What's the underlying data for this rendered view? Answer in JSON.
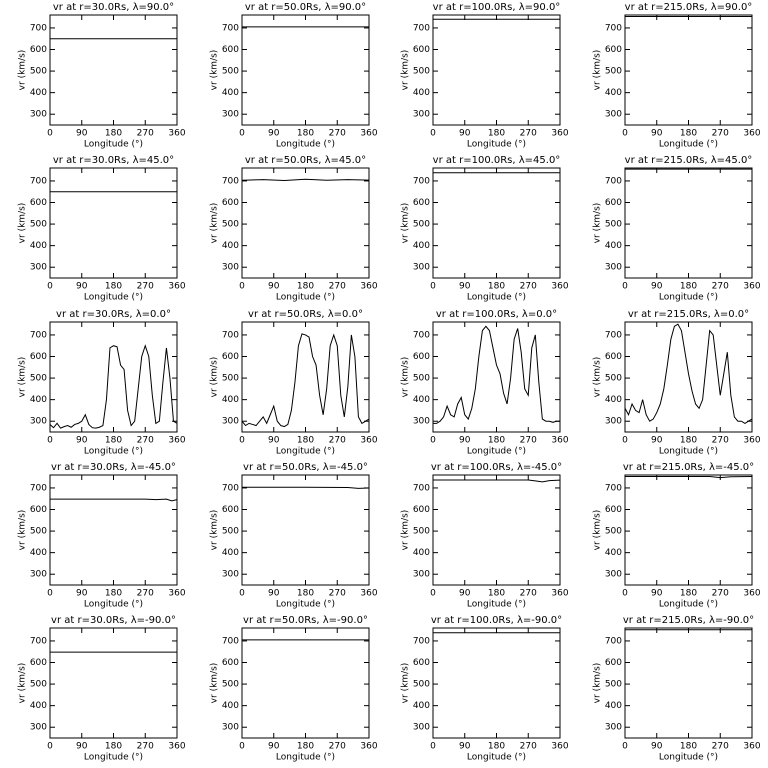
{
  "chart_data": [
    {
      "type": "line",
      "title": "vr at r=30.0Rs, λ=90.0°",
      "x_label": "Longitude (°)",
      "y_label": "vr (km/s)",
      "x": [
        0,
        360
      ],
      "values": [
        650,
        650
      ],
      "color": "#000000",
      "xlim": [
        0,
        360
      ],
      "xticks": [
        0,
        90,
        180,
        270,
        360
      ],
      "ylim": [
        250,
        760
      ],
      "yticks": [
        300,
        400,
        500,
        600,
        700
      ]
    },
    {
      "type": "line",
      "title": "vr at r=50.0Rs, λ=90.0°",
      "x_label": "Longitude (°)",
      "y_label": "vr (km/s)",
      "x": [
        0,
        360
      ],
      "values": [
        705,
        705
      ],
      "color": "#000000",
      "xlim": [
        0,
        360
      ],
      "xticks": [
        0,
        90,
        180,
        270,
        360
      ],
      "ylim": [
        250,
        760
      ],
      "yticks": [
        300,
        400,
        500,
        600,
        700
      ]
    },
    {
      "type": "line",
      "title": "vr at r=100.0Rs, λ=90.0°",
      "x_label": "Longitude (°)",
      "y_label": "vr (km/s)",
      "x": [
        0,
        360
      ],
      "values": [
        740,
        740
      ],
      "color": "#000000",
      "xlim": [
        0,
        360
      ],
      "xticks": [
        0,
        90,
        180,
        270,
        360
      ],
      "ylim": [
        250,
        760
      ],
      "yticks": [
        300,
        400,
        500,
        600,
        700
      ]
    },
    {
      "type": "line",
      "title": "vr at r=215.0Rs, λ=90.0°",
      "x_label": "Longitude (°)",
      "y_label": "vr (km/s)",
      "x": [
        0,
        360
      ],
      "values": [
        753,
        753
      ],
      "color": "#000000",
      "xlim": [
        0,
        360
      ],
      "xticks": [
        0,
        90,
        180,
        270,
        360
      ],
      "ylim": [
        250,
        760
      ],
      "yticks": [
        300,
        400,
        500,
        600,
        700
      ]
    },
    {
      "type": "line",
      "title": "vr at r=30.0Rs, λ=45.0°",
      "x_label": "Longitude (°)",
      "y_label": "vr (km/s)",
      "x": [
        0,
        360
      ],
      "values": [
        650,
        650
      ],
      "color": "#000000",
      "xlim": [
        0,
        360
      ],
      "xticks": [
        0,
        90,
        180,
        270,
        360
      ],
      "ylim": [
        250,
        760
      ],
      "yticks": [
        300,
        400,
        500,
        600,
        700
      ]
    },
    {
      "type": "line",
      "title": "vr at r=50.0Rs, λ=45.0°",
      "x_label": "Longitude (°)",
      "y_label": "vr (km/s)",
      "x": [
        0,
        60,
        120,
        180,
        240,
        300,
        360
      ],
      "values": [
        703,
        706,
        702,
        708,
        703,
        706,
        704
      ],
      "color": "#000000",
      "xlim": [
        0,
        360
      ],
      "xticks": [
        0,
        90,
        180,
        270,
        360
      ],
      "ylim": [
        250,
        760
      ],
      "yticks": [
        300,
        400,
        500,
        600,
        700
      ]
    },
    {
      "type": "line",
      "title": "vr at r=100.0Rs, λ=45.0°",
      "x_label": "Longitude (°)",
      "y_label": "vr (km/s)",
      "x": [
        0,
        360
      ],
      "values": [
        738,
        738
      ],
      "color": "#000000",
      "xlim": [
        0,
        360
      ],
      "xticks": [
        0,
        90,
        180,
        270,
        360
      ],
      "ylim": [
        250,
        760
      ],
      "yticks": [
        300,
        400,
        500,
        600,
        700
      ]
    },
    {
      "type": "line",
      "title": "vr at r=215.0Rs, λ=45.0°",
      "x_label": "Longitude (°)",
      "y_label": "vr (km/s)",
      "x": [
        0,
        360
      ],
      "values": [
        755,
        755
      ],
      "color": "#000000",
      "xlim": [
        0,
        360
      ],
      "xticks": [
        0,
        90,
        180,
        270,
        360
      ],
      "ylim": [
        250,
        760
      ],
      "yticks": [
        300,
        400,
        500,
        600,
        700
      ]
    },
    {
      "type": "line",
      "title": "vr at r=30.0Rs, λ=0.0°",
      "x_label": "Longitude (°)",
      "y_label": "vr (km/s)",
      "x": [
        0,
        10,
        20,
        30,
        40,
        50,
        60,
        70,
        80,
        90,
        100,
        110,
        120,
        130,
        140,
        150,
        160,
        170,
        180,
        190,
        200,
        210,
        220,
        230,
        240,
        250,
        260,
        270,
        280,
        290,
        300,
        310,
        320,
        330,
        340,
        350,
        360
      ],
      "values": [
        285,
        270,
        290,
        268,
        275,
        280,
        272,
        285,
        290,
        300,
        330,
        285,
        270,
        268,
        272,
        280,
        400,
        640,
        650,
        645,
        560,
        540,
        350,
        280,
        300,
        450,
        600,
        650,
        600,
        420,
        290,
        300,
        480,
        640,
        500,
        300,
        290
      ],
      "color": "#000000",
      "xlim": [
        0,
        360
      ],
      "xticks": [
        0,
        90,
        180,
        270,
        360
      ],
      "ylim": [
        250,
        760
      ],
      "yticks": [
        300,
        400,
        500,
        600,
        700
      ]
    },
    {
      "type": "line",
      "title": "vr at r=50.0Rs, λ=0.0°",
      "x_label": "Longitude (°)",
      "y_label": "vr (km/s)",
      "x": [
        0,
        10,
        20,
        30,
        40,
        50,
        60,
        70,
        80,
        90,
        100,
        110,
        120,
        130,
        140,
        150,
        160,
        170,
        180,
        190,
        200,
        210,
        220,
        230,
        240,
        250,
        260,
        270,
        280,
        290,
        300,
        310,
        320,
        330,
        340,
        350,
        360
      ],
      "values": [
        300,
        280,
        290,
        285,
        280,
        300,
        320,
        290,
        330,
        370,
        300,
        280,
        275,
        285,
        350,
        480,
        650,
        705,
        700,
        690,
        600,
        560,
        420,
        330,
        450,
        650,
        700,
        650,
        420,
        320,
        460,
        700,
        600,
        320,
        290,
        300,
        310
      ],
      "color": "#000000",
      "xlim": [
        0,
        360
      ],
      "xticks": [
        0,
        90,
        180,
        270,
        360
      ],
      "ylim": [
        250,
        760
      ],
      "yticks": [
        300,
        400,
        500,
        600,
        700
      ]
    },
    {
      "type": "line",
      "title": "vr at r=100.0Rs, λ=0.0°",
      "x_label": "Longitude (°)",
      "y_label": "vr (km/s)",
      "x": [
        0,
        10,
        20,
        30,
        40,
        50,
        60,
        70,
        80,
        90,
        100,
        110,
        120,
        130,
        140,
        150,
        160,
        170,
        180,
        190,
        200,
        210,
        220,
        230,
        240,
        250,
        260,
        270,
        280,
        290,
        300,
        310,
        320,
        330,
        340,
        350,
        360
      ],
      "values": [
        290,
        290,
        300,
        320,
        370,
        330,
        320,
        380,
        410,
        330,
        310,
        360,
        450,
        600,
        720,
        740,
        720,
        640,
        560,
        520,
        430,
        380,
        500,
        680,
        730,
        620,
        450,
        420,
        640,
        700,
        480,
        310,
        300,
        300,
        295,
        300,
        300
      ],
      "color": "#000000",
      "xlim": [
        0,
        360
      ],
      "xticks": [
        0,
        90,
        180,
        270,
        360
      ],
      "ylim": [
        250,
        760
      ],
      "yticks": [
        300,
        400,
        500,
        600,
        700
      ]
    },
    {
      "type": "line",
      "title": "vr at r=215.0Rs, λ=0.0°",
      "x_label": "Longitude (°)",
      "y_label": "vr (km/s)",
      "x": [
        0,
        10,
        20,
        30,
        40,
        50,
        60,
        70,
        80,
        90,
        100,
        110,
        120,
        130,
        140,
        150,
        160,
        170,
        180,
        190,
        200,
        210,
        220,
        230,
        240,
        250,
        260,
        270,
        280,
        290,
        300,
        310,
        320,
        330,
        340,
        350,
        360
      ],
      "values": [
        360,
        330,
        380,
        350,
        340,
        400,
        330,
        300,
        310,
        340,
        380,
        450,
        560,
        680,
        740,
        750,
        720,
        620,
        520,
        440,
        380,
        360,
        400,
        560,
        720,
        700,
        560,
        420,
        520,
        620,
        420,
        320,
        300,
        300,
        290,
        300,
        310
      ],
      "color": "#000000",
      "xlim": [
        0,
        360
      ],
      "xticks": [
        0,
        90,
        180,
        270,
        360
      ],
      "ylim": [
        250,
        760
      ],
      "yticks": [
        300,
        400,
        500,
        600,
        700
      ]
    },
    {
      "type": "line",
      "title": "vr at r=30.0Rs, λ=-45.0°",
      "x_label": "Longitude (°)",
      "y_label": "vr (km/s)",
      "x": [
        0,
        90,
        180,
        270,
        300,
        330,
        345,
        360
      ],
      "values": [
        648,
        648,
        648,
        648,
        646,
        648,
        640,
        646
      ],
      "color": "#000000",
      "xlim": [
        0,
        360
      ],
      "xticks": [
        0,
        90,
        180,
        270,
        360
      ],
      "ylim": [
        250,
        760
      ],
      "yticks": [
        300,
        400,
        500,
        600,
        700
      ]
    },
    {
      "type": "line",
      "title": "vr at r=50.0Rs, λ=-45.0°",
      "x_label": "Longitude (°)",
      "y_label": "vr (km/s)",
      "x": [
        0,
        180,
        300,
        330,
        360
      ],
      "values": [
        703,
        703,
        702,
        698,
        700
      ],
      "color": "#000000",
      "xlim": [
        0,
        360
      ],
      "xticks": [
        0,
        90,
        180,
        270,
        360
      ],
      "ylim": [
        250,
        760
      ],
      "yticks": [
        300,
        400,
        500,
        600,
        700
      ]
    },
    {
      "type": "line",
      "title": "vr at r=100.0Rs, λ=-45.0°",
      "x_label": "Longitude (°)",
      "y_label": "vr (km/s)",
      "x": [
        0,
        270,
        290,
        310,
        330,
        360
      ],
      "values": [
        737,
        737,
        733,
        728,
        734,
        736
      ],
      "color": "#000000",
      "xlim": [
        0,
        360
      ],
      "xticks": [
        0,
        90,
        180,
        270,
        360
      ],
      "ylim": [
        250,
        760
      ],
      "yticks": [
        300,
        400,
        500,
        600,
        700
      ]
    },
    {
      "type": "line",
      "title": "vr at r=215.0Rs, λ=-45.0°",
      "x_label": "Longitude (°)",
      "y_label": "vr (km/s)",
      "x": [
        0,
        240,
        270,
        300,
        360
      ],
      "values": [
        753,
        753,
        748,
        752,
        753
      ],
      "color": "#000000",
      "xlim": [
        0,
        360
      ],
      "xticks": [
        0,
        90,
        180,
        270,
        360
      ],
      "ylim": [
        250,
        760
      ],
      "yticks": [
        300,
        400,
        500,
        600,
        700
      ]
    },
    {
      "type": "line",
      "title": "vr at r=30.0Rs, λ=-90.0°",
      "x_label": "Longitude (°)",
      "y_label": "vr (km/s)",
      "x": [
        0,
        360
      ],
      "values": [
        648,
        648
      ],
      "color": "#000000",
      "xlim": [
        0,
        360
      ],
      "xticks": [
        0,
        90,
        180,
        270,
        360
      ],
      "ylim": [
        250,
        760
      ],
      "yticks": [
        300,
        400,
        500,
        600,
        700
      ]
    },
    {
      "type": "line",
      "title": "vr at r=50.0Rs, λ=-90.0°",
      "x_label": "Longitude (°)",
      "y_label": "vr (km/s)",
      "x": [
        0,
        360
      ],
      "values": [
        705,
        705
      ],
      "color": "#000000",
      "xlim": [
        0,
        360
      ],
      "xticks": [
        0,
        90,
        180,
        270,
        360
      ],
      "ylim": [
        250,
        760
      ],
      "yticks": [
        300,
        400,
        500,
        600,
        700
      ]
    },
    {
      "type": "line",
      "title": "vr at r=100.0Rs, λ=-90.0°",
      "x_label": "Longitude (°)",
      "y_label": "vr (km/s)",
      "x": [
        0,
        360
      ],
      "values": [
        738,
        738
      ],
      "color": "#000000",
      "xlim": [
        0,
        360
      ],
      "xticks": [
        0,
        90,
        180,
        270,
        360
      ],
      "ylim": [
        250,
        760
      ],
      "yticks": [
        300,
        400,
        500,
        600,
        700
      ]
    },
    {
      "type": "line",
      "title": "vr at r=215.0Rs, λ=-90.0°",
      "x_label": "Longitude (°)",
      "y_label": "vr (km/s)",
      "x": [
        0,
        360
      ],
      "values": [
        752,
        752
      ],
      "color": "#000000",
      "xlim": [
        0,
        360
      ],
      "xticks": [
        0,
        90,
        180,
        270,
        360
      ],
      "ylim": [
        250,
        760
      ],
      "yticks": [
        300,
        400,
        500,
        600,
        700
      ]
    }
  ]
}
